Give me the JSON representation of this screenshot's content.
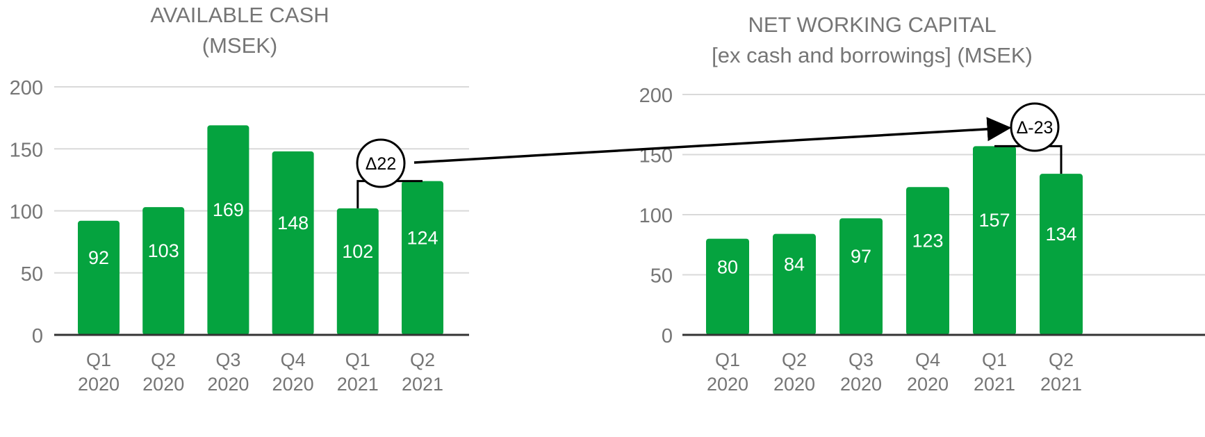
{
  "colors": {
    "bar": "#05a33f",
    "grid": "#d9d9d9",
    "axis": "#333333",
    "tick_text": "#757575",
    "bar_label": "#ffffff",
    "annotation": "#000000"
  },
  "chart_data": [
    {
      "type": "bar",
      "title": "AVAILABLE CASH",
      "subtitle": "(MSEK)",
      "categories": [
        [
          "Q1",
          "2020"
        ],
        [
          "Q2",
          "2020"
        ],
        [
          "Q3",
          "2020"
        ],
        [
          "Q4",
          "2020"
        ],
        [
          "Q1",
          "2021"
        ],
        [
          "Q2",
          "2021"
        ]
      ],
      "values": [
        92,
        103,
        169,
        148,
        102,
        124
      ],
      "data_labels": [
        "92",
        "103",
        "169",
        "148",
        "102",
        "124"
      ],
      "ylim": [
        0,
        200
      ],
      "yticks": [
        0,
        50,
        100,
        150,
        200
      ],
      "grid": true,
      "annotation": {
        "label": "Δ22",
        "from_index": 4,
        "to_index": 5
      }
    },
    {
      "type": "bar",
      "title": "NET WORKING CAPITAL",
      "subtitle": "[ex cash and borrowings] (MSEK)",
      "categories": [
        [
          "Q1",
          "2020"
        ],
        [
          "Q2",
          "2020"
        ],
        [
          "Q3",
          "2020"
        ],
        [
          "Q4",
          "2020"
        ],
        [
          "Q1",
          "2021"
        ],
        [
          "Q2",
          "2021"
        ]
      ],
      "values": [
        80,
        84,
        97,
        123,
        157,
        134
      ],
      "data_labels": [
        "80",
        "84",
        "97",
        "123",
        "157",
        "134"
      ],
      "ylim": [
        0,
        200
      ],
      "yticks": [
        0,
        50,
        100,
        150,
        200
      ],
      "grid": true,
      "annotation": {
        "label": "Δ-23",
        "from_index": 4,
        "to_index": 5
      }
    }
  ]
}
